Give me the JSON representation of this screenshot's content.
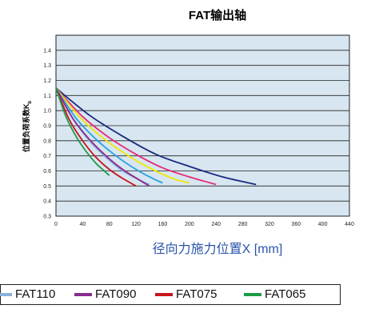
{
  "chart_data": {
    "type": "line",
    "title": "FAT输出轴",
    "xlabel": "径向力施力位置X [mm]",
    "ylabel": "位置负荷系数K",
    "ylabel_sub": "b",
    "xlim": [
      0,
      440
    ],
    "ylim": [
      0.3,
      1.5
    ],
    "x_ticks": [
      0,
      40,
      80,
      120,
      160,
      200,
      240,
      280,
      320,
      360,
      400,
      440
    ],
    "y_ticks": [
      0.3,
      0.4,
      0.5,
      0.6,
      0.7,
      0.8,
      0.9,
      1.0,
      1.1,
      1.2,
      1.3,
      1.4
    ],
    "plot_background": "#d7e6f0",
    "grid": "horizontal",
    "legend_position": "bottom",
    "series": [
      {
        "color": "#1b2a80",
        "x": [
          0,
          50,
          100,
          150,
          200,
          250,
          300
        ],
        "y": [
          1.15,
          0.97,
          0.83,
          0.71,
          0.63,
          0.56,
          0.51
        ]
      },
      {
        "color": "#e6287a",
        "x": [
          0,
          40,
          80,
          120,
          160,
          200,
          240
        ],
        "y": [
          1.15,
          0.96,
          0.82,
          0.71,
          0.62,
          0.56,
          0.51
        ]
      },
      {
        "color": "#f2e600",
        "x": [
          0,
          35,
          70,
          105,
          140,
          175,
          200
        ],
        "y": [
          1.15,
          0.96,
          0.82,
          0.71,
          0.62,
          0.55,
          0.52
        ]
      },
      {
        "color": "#29a0e0",
        "x": [
          0,
          30,
          60,
          90,
          120,
          145,
          160
        ],
        "y": [
          1.15,
          0.95,
          0.81,
          0.7,
          0.61,
          0.55,
          0.52
        ]
      },
      {
        "name": "FAT110",
        "color": "#8ab0dc",
        "x": [
          0,
          25,
          50,
          75,
          100,
          125,
          140
        ],
        "y": [
          1.15,
          0.95,
          0.8,
          0.69,
          0.6,
          0.54,
          0.51
        ]
      },
      {
        "name": "FAT090",
        "color": "#8a2a8f",
        "x": [
          0,
          25,
          50,
          75,
          100,
          125,
          140
        ],
        "y": [
          1.15,
          0.95,
          0.81,
          0.7,
          0.61,
          0.54,
          0.5
        ]
      },
      {
        "name": "FAT075",
        "color": "#c8141e",
        "x": [
          0,
          20,
          40,
          60,
          80,
          100,
          120
        ],
        "y": [
          1.15,
          0.94,
          0.8,
          0.69,
          0.61,
          0.55,
          0.5
        ]
      },
      {
        "name": "FAT065",
        "color": "#1e9a46",
        "x": [
          0,
          15,
          30,
          45,
          60,
          70,
          80
        ],
        "y": [
          1.15,
          0.96,
          0.83,
          0.73,
          0.65,
          0.61,
          0.57
        ]
      }
    ]
  }
}
